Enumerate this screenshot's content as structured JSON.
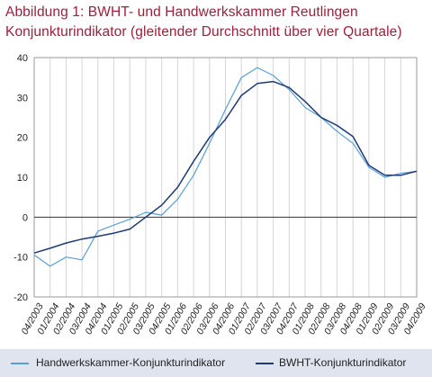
{
  "figure": {
    "title_line1": "Abbildung 1: BWHT- und Handwerkskammer  Reutlingen",
    "title_line2": "Konjunkturindikator (gleitender Durchschnitt über vier Quartale)"
  },
  "chart_data": {
    "type": "line",
    "title": "Abbildung 1: BWHT- und Handwerkskammer  Reutlingen Konjunkturindikator (gleitender Durchschnitt über vier Quartale)",
    "xlabel": "",
    "ylabel": "",
    "ylim": [
      -20,
      40
    ],
    "yticks": [
      40,
      30,
      20,
      10,
      0,
      -10,
      -20
    ],
    "grid": "vertical",
    "legend": "bottom",
    "categories": [
      "04/2003",
      "01/2004",
      "02/2004",
      "03/2004",
      "04/2004",
      "01/2005",
      "02/2005",
      "03/2005",
      "04/2005",
      "01/2006",
      "02/2006",
      "03/2006",
      "04/2006",
      "01/2007",
      "02/2007",
      "03/2007",
      "04/2007",
      "01/2008",
      "02/2008",
      "03/2008",
      "04/2008",
      "01/2009",
      "02/2009",
      "03/2009",
      "04/2009"
    ],
    "x_tick_labels": [
      "04/2003",
      "01/2004",
      "02/2004",
      "03/2004",
      "04/2004",
      "01/2005",
      "02/2005",
      "03/2005",
      "04/2005",
      "01/2006",
      "02/2006",
      "03/2006",
      "04/2006",
      "01/2007",
      "02/2007",
      "03/2007",
      "04/2007",
      "01/2008",
      "02/2008",
      "03/2008",
      "04/2008",
      "01/2009",
      "02/2009",
      "03/2009",
      "04/2009"
    ],
    "series": [
      {
        "name": "Handwerkskammer-Konjunkturindikator",
        "color": "#5a9fd4",
        "values": [
          -9.5,
          -12.3,
          -10,
          -10.7,
          -3.5,
          -2,
          -0.5,
          1.2,
          0.5,
          4.5,
          10.5,
          18.5,
          27,
          35,
          37.5,
          35.5,
          32,
          27.5,
          25,
          21.5,
          18.5,
          12.5,
          10,
          11,
          11.5
        ]
      },
      {
        "name": "BWHT-Konjunkturindikator",
        "color": "#1f3a73",
        "values": [
          -9,
          -7.8,
          -6.5,
          -5.5,
          -4.8,
          -4,
          -3,
          0,
          3,
          7.5,
          14,
          20,
          24.5,
          30.5,
          33.5,
          34,
          32.5,
          29,
          25,
          23,
          20.2,
          13,
          10.5,
          10.5,
          11.5
        ]
      }
    ]
  }
}
